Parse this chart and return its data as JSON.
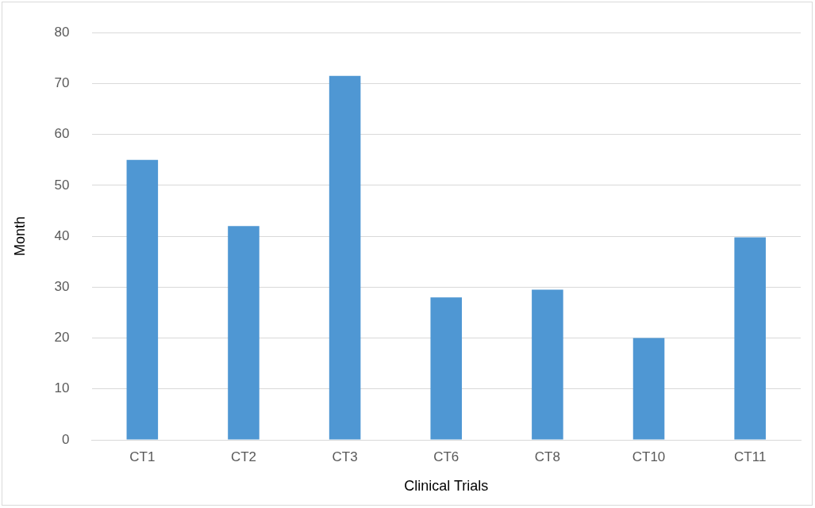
{
  "chart_data": {
    "type": "bar",
    "xlabel": "Clinical Trials",
    "ylabel": "Month",
    "categories": [
      "CT1",
      "CT2",
      "CT3",
      "CT6",
      "CT8",
      "CT10",
      "CT11"
    ],
    "values": [
      55,
      42,
      71.5,
      28,
      29.5,
      20,
      39.8
    ],
    "color": "#4f97d3",
    "ylim": [
      0,
      80
    ],
    "yticks": [
      0,
      10,
      20,
      30,
      40,
      50,
      60,
      70,
      80
    ],
    "grid": "y"
  }
}
